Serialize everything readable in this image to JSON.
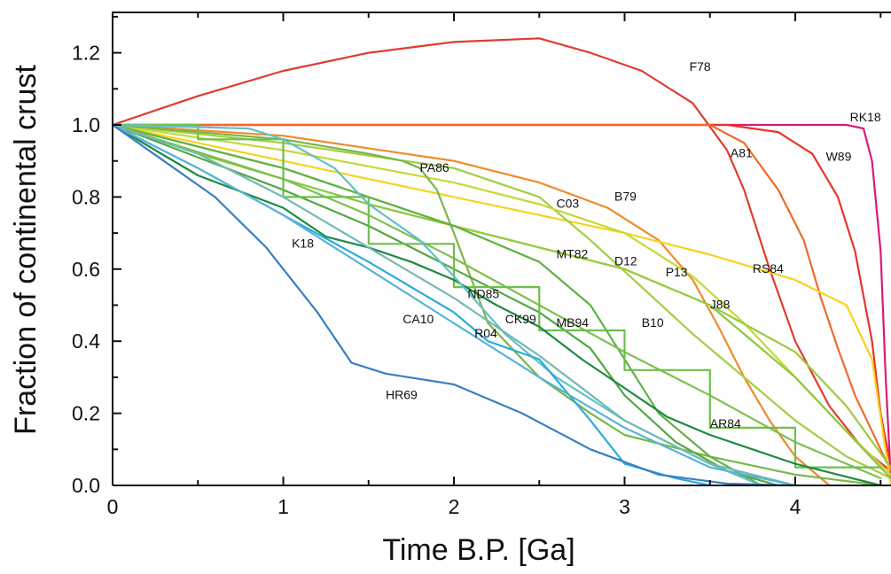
{
  "chart_data": {
    "type": "line",
    "xlabel": "Time B.P. [Ga]",
    "ylabel": "Fraction of continental crust",
    "xlim": [
      0,
      4.56
    ],
    "ylim": [
      0,
      1.3
    ],
    "xticks": [
      "0",
      "1",
      "2",
      "3",
      "4"
    ],
    "yticks": [
      "0.0",
      "0.2",
      "0.4",
      "0.6",
      "0.8",
      "1.0",
      "1.2"
    ],
    "grid": false,
    "legend": "none",
    "series": [
      {
        "name": "F78",
        "color": "#e03b2e",
        "x": [
          0,
          0.5,
          1,
          1.5,
          2,
          2.5,
          2.8,
          3.1,
          3.4,
          3.6,
          3.7,
          3.85,
          4.0,
          4.2,
          4.4,
          4.56
        ],
        "y": [
          1.0,
          1.08,
          1.15,
          1.2,
          1.23,
          1.24,
          1.2,
          1.15,
          1.06,
          0.93,
          0.82,
          0.6,
          0.4,
          0.22,
          0.1,
          0.04
        ]
      },
      {
        "name": "RK18",
        "color": "#d81b7a",
        "x": [
          0,
          4.3,
          4.4,
          4.45,
          4.5,
          4.53,
          4.56
        ],
        "y": [
          1.0,
          1.0,
          0.99,
          0.9,
          0.65,
          0.3,
          0.02
        ]
      },
      {
        "name": "W89",
        "color": "#e8352a",
        "x": [
          0,
          3.6,
          3.9,
          4.1,
          4.25,
          4.35,
          4.45,
          4.5,
          4.56
        ],
        "y": [
          1.0,
          1.0,
          0.98,
          0.92,
          0.8,
          0.65,
          0.4,
          0.2,
          0.05
        ]
      },
      {
        "name": "A81",
        "color": "#ef6a2a",
        "x": [
          0,
          3.5,
          3.7,
          3.9,
          4.05,
          4.15,
          4.25,
          4.35,
          4.5,
          4.56
        ],
        "y": [
          1.0,
          1.0,
          0.95,
          0.82,
          0.68,
          0.52,
          0.38,
          0.25,
          0.1,
          0.04
        ]
      },
      {
        "name": "B79",
        "color": "#f08a2b",
        "x": [
          0,
          1,
          2,
          2.5,
          2.9,
          3.2,
          3.4,
          3.55,
          3.7,
          3.85,
          4.0,
          4.2
        ],
        "y": [
          1.0,
          0.97,
          0.9,
          0.84,
          0.77,
          0.68,
          0.57,
          0.44,
          0.3,
          0.18,
          0.08,
          0.0
        ]
      },
      {
        "name": "RS84",
        "color": "#f6d21f",
        "x": [
          0,
          1,
          2,
          3,
          3.5,
          4.0,
          4.3,
          4.45,
          4.56
        ],
        "y": [
          1.0,
          0.9,
          0.8,
          0.7,
          0.64,
          0.57,
          0.5,
          0.35,
          0.0
        ]
      },
      {
        "name": "C03",
        "color": "#a3ce45",
        "x": [
          0,
          1,
          2,
          2.5,
          2.8,
          3.1,
          3.4,
          3.7,
          4.0,
          4.3,
          4.56
        ],
        "y": [
          1.0,
          0.95,
          0.88,
          0.8,
          0.68,
          0.55,
          0.42,
          0.3,
          0.18,
          0.08,
          0.02
        ]
      },
      {
        "name": "P13",
        "color": "#c6d83a",
        "x": [
          0,
          1,
          2,
          2.5,
          3.0,
          3.4,
          3.7,
          4.0,
          4.3,
          4.56
        ],
        "y": [
          1.0,
          0.93,
          0.84,
          0.78,
          0.7,
          0.58,
          0.45,
          0.3,
          0.15,
          0.03
        ]
      },
      {
        "name": "D12",
        "color": "#8cc63f",
        "x": [
          0,
          0.5,
          1,
          1.5,
          2,
          2.5,
          3,
          3.5,
          4,
          4.56
        ],
        "y": [
          1.0,
          0.92,
          0.85,
          0.78,
          0.72,
          0.66,
          0.6,
          0.5,
          0.3,
          0.02
        ]
      },
      {
        "name": "J88",
        "color": "#9bcb3c",
        "x": [
          0,
          1,
          2,
          3,
          3.5,
          4.0,
          4.3,
          4.56
        ],
        "y": [
          1.0,
          0.88,
          0.72,
          0.6,
          0.5,
          0.37,
          0.22,
          0.05
        ]
      },
      {
        "name": "PA86",
        "color": "#7ab648",
        "x": [
          0,
          0.5,
          1,
          1.5,
          1.7,
          1.8,
          1.9,
          2.0,
          2.2,
          2.5,
          2.8,
          3.0,
          3.5,
          4.0,
          4.5
        ],
        "y": [
          1.0,
          0.98,
          0.96,
          0.92,
          0.9,
          0.88,
          0.82,
          0.7,
          0.45,
          0.3,
          0.2,
          0.14,
          0.08,
          0.03,
          0.0
        ]
      },
      {
        "name": "MT82",
        "color": "#5fb246",
        "x": [
          0,
          1,
          1.5,
          2,
          2.5,
          2.8,
          3.0,
          3.2,
          3.5,
          3.8
        ],
        "y": [
          1.0,
          0.88,
          0.8,
          0.72,
          0.62,
          0.5,
          0.35,
          0.2,
          0.08,
          0.0
        ]
      },
      {
        "name": "B10",
        "color": "#7dc050",
        "x": [
          0,
          1,
          1.5,
          2,
          2.5,
          3,
          3.5,
          4,
          4.5
        ],
        "y": [
          1.0,
          0.85,
          0.75,
          0.63,
          0.5,
          0.37,
          0.25,
          0.12,
          0.02
        ]
      },
      {
        "name": "MB94",
        "color": "#52a844",
        "x": [
          0,
          1,
          1.5,
          2,
          2.5,
          2.8,
          3.0,
          3.3,
          3.6,
          3.9
        ],
        "y": [
          1.0,
          0.82,
          0.72,
          0.6,
          0.48,
          0.38,
          0.25,
          0.12,
          0.04,
          0.0
        ]
      },
      {
        "name": "AR84",
        "color": "#6cc04a",
        "x": [
          0,
          0.5,
          0.5,
          1.0,
          1.0,
          1.5,
          1.5,
          2.0,
          2.0,
          2.5,
          2.5,
          3.0,
          3.0,
          3.5,
          3.5,
          4.0,
          4.0,
          4.5
        ],
        "y": [
          1.0,
          1.0,
          0.96,
          0.96,
          0.8,
          0.8,
          0.67,
          0.67,
          0.55,
          0.55,
          0.43,
          0.43,
          0.32,
          0.32,
          0.16,
          0.16,
          0.05,
          0.05
        ]
      },
      {
        "name": "K18",
        "color": "#1e8a43",
        "x": [
          0,
          0.25,
          0.5,
          1.0,
          1.25,
          1.5,
          1.75,
          2.0,
          2.25,
          2.5,
          2.75,
          3.0,
          3.25,
          3.5,
          3.75,
          4.0,
          4.25,
          4.5
        ],
        "y": [
          1.0,
          0.93,
          0.86,
          0.77,
          0.69,
          0.66,
          0.62,
          0.57,
          0.5,
          0.44,
          0.35,
          0.27,
          0.19,
          0.14,
          0.1,
          0.06,
          0.03,
          0.0
        ]
      },
      {
        "name": "ND85",
        "color": "#64c0c8",
        "x": [
          0,
          0.8,
          1.0,
          1.3,
          1.5,
          1.8,
          2.0,
          2.3,
          2.6,
          3.0,
          3.5,
          3.8
        ],
        "y": [
          1.0,
          0.99,
          0.96,
          0.88,
          0.78,
          0.68,
          0.58,
          0.42,
          0.3,
          0.18,
          0.06,
          0.0
        ]
      },
      {
        "name": "CK99",
        "color": "#74b8b3",
        "x": [
          0,
          0.5,
          1,
          1.5,
          2,
          2.5,
          3,
          3.5,
          4
        ],
        "y": [
          1.0,
          0.92,
          0.8,
          0.66,
          0.52,
          0.36,
          0.18,
          0.06,
          0.0
        ]
      },
      {
        "name": "CA10",
        "color": "#2eaadc",
        "x": [
          0,
          0.5,
          1,
          1.5,
          2,
          2.2,
          2.5,
          2.8,
          3.0,
          3.3,
          3.5
        ],
        "y": [
          1.0,
          0.88,
          0.75,
          0.62,
          0.48,
          0.4,
          0.35,
          0.18,
          0.06,
          0.02,
          0.0
        ]
      },
      {
        "name": "R04",
        "color": "#58b3d6",
        "x": [
          0,
          0.5,
          1,
          1.5,
          2,
          2.5,
          3,
          3.5,
          4
        ],
        "y": [
          1.0,
          0.88,
          0.75,
          0.6,
          0.45,
          0.3,
          0.16,
          0.05,
          0.0
        ]
      },
      {
        "name": "HR69",
        "color": "#3a7fc4",
        "x": [
          0,
          0.3,
          0.6,
          0.9,
          1.2,
          1.4,
          1.6,
          2.0,
          2.4,
          2.8,
          3.2,
          3.6,
          4.0
        ],
        "y": [
          1.0,
          0.9,
          0.8,
          0.66,
          0.48,
          0.34,
          0.31,
          0.28,
          0.2,
          0.1,
          0.03,
          0.005,
          0.0
        ]
      }
    ],
    "annotations": [
      {
        "text": "F78",
        "x": 3.38,
        "y": 1.15
      },
      {
        "text": "RK18",
        "x": 4.32,
        "y": 1.01
      },
      {
        "text": "W89",
        "x": 4.18,
        "y": 0.9
      },
      {
        "text": "A81",
        "x": 3.62,
        "y": 0.91
      },
      {
        "text": "PA86",
        "x": 1.8,
        "y": 0.87
      },
      {
        "text": "B79",
        "x": 2.94,
        "y": 0.79
      },
      {
        "text": "C03",
        "x": 2.6,
        "y": 0.77
      },
      {
        "text": "K18",
        "x": 1.05,
        "y": 0.66
      },
      {
        "text": "MT82",
        "x": 2.6,
        "y": 0.63
      },
      {
        "text": "D12",
        "x": 2.94,
        "y": 0.61
      },
      {
        "text": "P13",
        "x": 3.24,
        "y": 0.58
      },
      {
        "text": "RS84",
        "x": 3.75,
        "y": 0.59
      },
      {
        "text": "ND85",
        "x": 2.08,
        "y": 0.52
      },
      {
        "text": "J88",
        "x": 3.5,
        "y": 0.49
      },
      {
        "text": "CA10",
        "x": 1.7,
        "y": 0.45
      },
      {
        "text": "CK99",
        "x": 2.3,
        "y": 0.45
      },
      {
        "text": "MB94",
        "x": 2.6,
        "y": 0.44
      },
      {
        "text": "B10",
        "x": 3.1,
        "y": 0.44
      },
      {
        "text": "R04",
        "x": 2.12,
        "y": 0.41
      },
      {
        "text": "HR69",
        "x": 1.6,
        "y": 0.24
      },
      {
        "text": "AR84",
        "x": 3.5,
        "y": 0.16
      }
    ]
  }
}
